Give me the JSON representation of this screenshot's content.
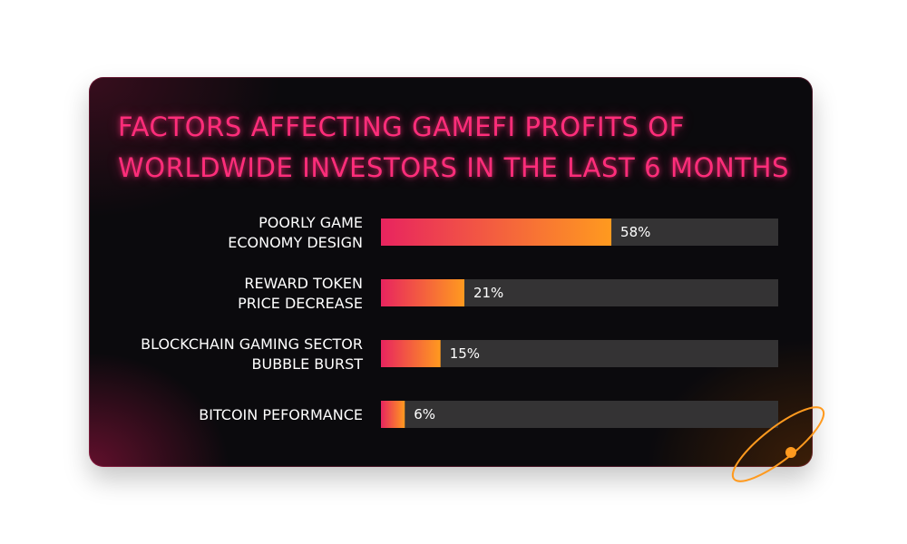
{
  "title": {
    "line1": "FACTORS AFFECTING GAMEFI PROFITS OF",
    "line2": "WORLDWIDE INVESTORS IN THE LAST 6 MONTHS"
  },
  "colors": {
    "title": "#ff2d7a",
    "bar_start": "#e8245f",
    "bar_end": "#ff9a1f",
    "track": "#343334",
    "label": "#ffffff",
    "orbit": "#ff9a1f"
  },
  "chart_data": {
    "type": "bar",
    "orientation": "horizontal",
    "title": "FACTORS AFFECTING GAMEFI PROFITS OF WORLDWIDE INVESTORS IN THE LAST 6 MONTHS",
    "categories": [
      [
        "POORLY GAME",
        "ECONOMY DESIGN"
      ],
      [
        "REWARD TOKEN",
        "PRICE DECREASE"
      ],
      [
        "BLOCKCHAIN GAMING SECTOR",
        "BUBBLE BURST"
      ],
      [
        "BITCOIN PEFORMANCE"
      ]
    ],
    "values": [
      58,
      21,
      15,
      6
    ],
    "value_labels": [
      "58%",
      "21%",
      "15%",
      "6%"
    ],
    "xlim": [
      0,
      100
    ],
    "grid": false,
    "legend": "none"
  }
}
